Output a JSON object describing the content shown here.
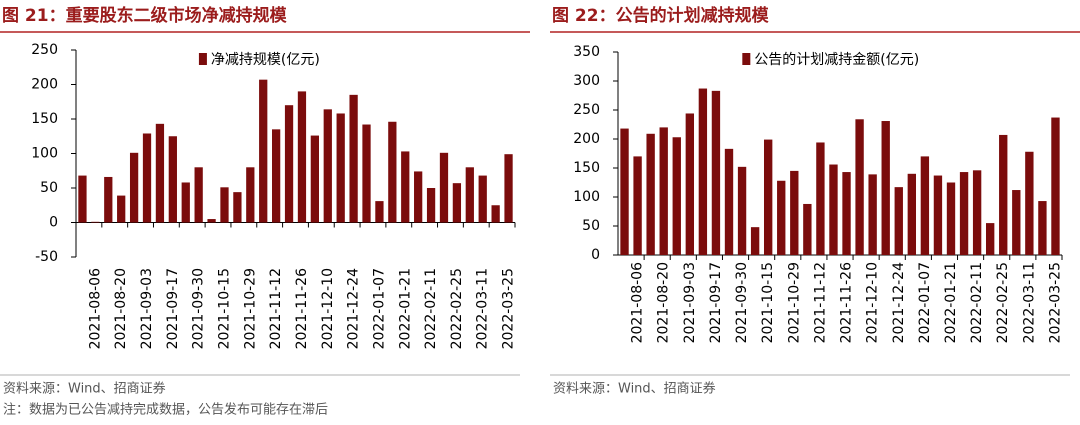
{
  "chart_data": [
    {
      "type": "bar",
      "title": "图 21：重要股东二级市场净减持规模",
      "categories": [
        null,
        "2021-08-06",
        null,
        "2021-08-20",
        null,
        "2021-09-03",
        null,
        "2021-09-17",
        null,
        "2021-09-30",
        null,
        "2021-10-15",
        null,
        "2021-10-29",
        null,
        "2021-11-12",
        null,
        "2021-11-26",
        null,
        "2021-12-10",
        null,
        "2021-12-24",
        null,
        "2022-01-07",
        null,
        "2022-01-21",
        null,
        "2022-02-11",
        null,
        "2022-02-25",
        null,
        "2022-03-11",
        null,
        "2022-03-25"
      ],
      "series": [
        {
          "name": "净减持规模(亿元)",
          "color": "#7b0c0c",
          "values": [
            68,
            1,
            66,
            39,
            101,
            129,
            143,
            125,
            58,
            80,
            5,
            51,
            44,
            80,
            207,
            135,
            170,
            190,
            126,
            164,
            158,
            185,
            142,
            31,
            146,
            103,
            74,
            50,
            101,
            57,
            80,
            68,
            25,
            99
          ]
        }
      ],
      "ylim": [
        -50,
        250
      ],
      "yticks": [
        -50,
        0,
        50,
        100,
        150,
        200,
        250
      ],
      "source": "资料来源：Wind、招商证券",
      "note": "注：数据为已公告减持完成数据，公告发布可能存在滞后"
    },
    {
      "type": "bar",
      "title": "图 22：公告的计划减持规模",
      "categories": [
        null,
        "2021-08-06",
        null,
        "2021-08-20",
        null,
        "2021-09-03",
        null,
        "2021-09-17",
        null,
        "2021-09-30",
        null,
        "2021-10-15",
        null,
        "2021-10-29",
        null,
        "2021-11-12",
        null,
        "2021-11-26",
        null,
        "2021-12-10",
        null,
        "2021-12-24",
        null,
        "2022-01-07",
        null,
        "2022-01-21",
        null,
        "2022-02-11",
        null,
        "2022-02-25",
        null,
        "2022-03-11",
        null,
        "2022-03-25"
      ],
      "series": [
        {
          "name": "公告的计划减持金额(亿元)",
          "color": "#7b0c0c",
          "values": [
            218,
            170,
            209,
            220,
            203,
            244,
            287,
            283,
            183,
            152,
            48,
            199,
            128,
            145,
            88,
            194,
            156,
            143,
            234,
            139,
            231,
            117,
            140,
            170,
            137,
            125,
            143,
            146,
            55,
            207,
            112,
            178,
            93,
            237
          ]
        }
      ],
      "ylim": [
        0,
        350
      ],
      "yticks": [
        0,
        50,
        100,
        150,
        200,
        250,
        300,
        350
      ],
      "source": "资料来源：Wind、招商证券"
    }
  ]
}
